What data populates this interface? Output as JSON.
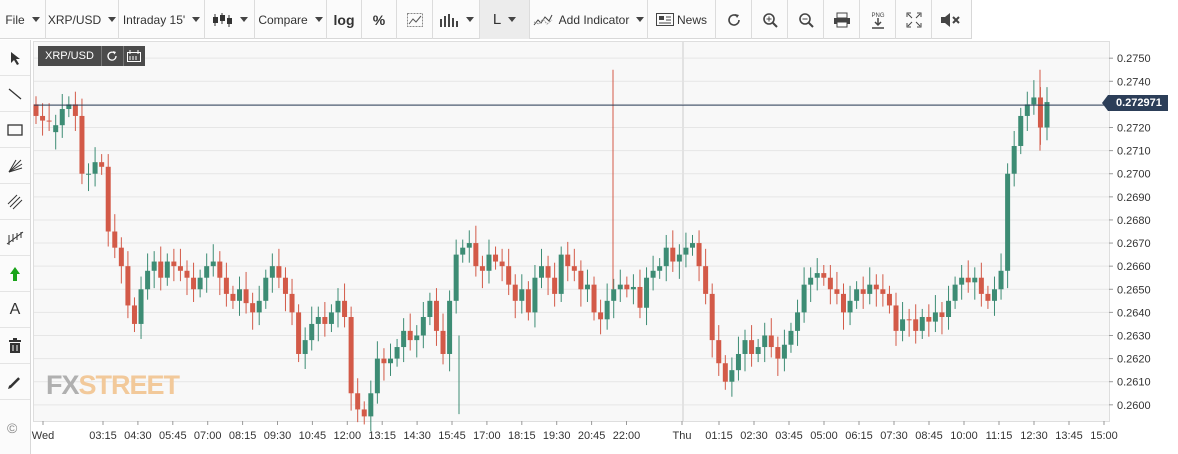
{
  "toolbar": {
    "file": "File",
    "symbol": "XRP/USD",
    "interval": "Intraday 15'",
    "compare": "Compare",
    "log": "log",
    "percent": "%",
    "line_mode": "L",
    "add_indicator": "Add Indicator",
    "news": "News"
  },
  "lefttools": {
    "text_tool": "A"
  },
  "symbol_label": "XRP/USD",
  "logo": {
    "fx": "FX",
    "street": "STREET"
  },
  "copyright": "©",
  "colors": {
    "up": "#3d8c74",
    "down": "#d35a48",
    "price_line": "#2c3e58",
    "grid": "#e6e6e6"
  },
  "chart_data": {
    "type": "candlestick",
    "symbol": "XRP/USD",
    "interval": "15m",
    "current_price": 0.272971,
    "current_price_label": "0.272971",
    "ylim": [
      0.2593,
      0.2757
    ],
    "yticks": [
      "0.2600",
      "0.2610",
      "0.2620",
      "0.2630",
      "0.2640",
      "0.2650",
      "0.2660",
      "0.2670",
      "0.2680",
      "0.2690",
      "0.2700",
      "0.2710",
      "0.2720",
      "0.2730",
      "0.2740",
      "0.2750"
    ],
    "xticks": [
      "Wed",
      "03:15",
      "04:30",
      "05:45",
      "07:00",
      "08:15",
      "09:30",
      "10:45",
      "12:00",
      "13:15",
      "14:30",
      "15:45",
      "17:00",
      "18:15",
      "19:30",
      "20:45",
      "22:00",
      "Thu",
      "01:15",
      "02:30",
      "03:45",
      "05:00",
      "06:15",
      "07:30",
      "08:45",
      "10:00",
      "11:15",
      "12:30",
      "13:45",
      "15:00"
    ],
    "close": [
      0.2725,
      0.2723,
      0.2723,
      0.2721,
      0.2728,
      0.273,
      0.2725,
      0.27,
      0.27,
      0.2705,
      0.2703,
      0.2675,
      0.2668,
      0.266,
      0.2643,
      0.2635,
      0.265,
      0.2658,
      0.2662,
      0.2655,
      0.2662,
      0.266,
      0.2658,
      0.2655,
      0.265,
      0.2655,
      0.266,
      0.2662,
      0.2655,
      0.2648,
      0.2645,
      0.265,
      0.2644,
      0.264,
      0.2645,
      0.2655,
      0.266,
      0.2655,
      0.2648,
      0.264,
      0.2622,
      0.2628,
      0.2635,
      0.2638,
      0.2635,
      0.264,
      0.2645,
      0.2638,
      0.2605,
      0.2598,
      0.2595,
      0.2605,
      0.262,
      0.2618,
      0.262,
      0.2625,
      0.2632,
      0.2628,
      0.263,
      0.2638,
      0.2645,
      0.2632,
      0.2622,
      0.2645,
      0.2665,
      0.2668,
      0.267,
      0.266,
      0.2658,
      0.2665,
      0.2662,
      0.266,
      0.2652,
      0.2645,
      0.265,
      0.264,
      0.2655,
      0.266,
      0.2655,
      0.2648,
      0.2665,
      0.266,
      0.2658,
      0.265,
      0.2652,
      0.264,
      0.2637,
      0.2645,
      0.265,
      0.2652,
      0.265,
      0.2651,
      0.2642,
      0.2655,
      0.2658,
      0.266,
      0.2668,
      0.2662,
      0.2665,
      0.2668,
      0.267,
      0.266,
      0.2648,
      0.2628,
      0.2618,
      0.261,
      0.2615,
      0.2622,
      0.2628,
      0.2622,
      0.2625,
      0.263,
      0.2625,
      0.262,
      0.2626,
      0.2632,
      0.264,
      0.2652,
      0.2655,
      0.2657,
      0.2655,
      0.265,
      0.2648,
      0.264,
      0.2645,
      0.265,
      0.2648,
      0.2652,
      0.265,
      0.2648,
      0.2643,
      0.2632,
      0.2637,
      0.2637,
      0.2632,
      0.2638,
      0.2636,
      0.264,
      0.2638,
      0.2645,
      0.2652,
      0.2655,
      0.2653,
      0.2655,
      0.2648,
      0.2645,
      0.265,
      0.2658,
      0.27,
      0.2712,
      0.2725,
      0.273,
      0.2733,
      0.272,
      0.2731
    ],
    "colors_up": [
      0,
      0,
      0,
      1,
      1,
      1,
      0,
      0,
      1,
      1,
      0,
      0,
      0,
      0,
      0,
      0,
      1,
      1,
      1,
      0,
      1,
      0,
      0,
      0,
      0,
      1,
      1,
      1,
      0,
      0,
      0,
      1,
      0,
      0,
      1,
      1,
      1,
      0,
      0,
      0,
      0,
      1,
      1,
      1,
      0,
      1,
      1,
      0,
      0,
      0,
      0,
      1,
      1,
      0,
      1,
      1,
      1,
      0,
      1,
      1,
      1,
      0,
      0,
      1,
      1,
      1,
      1,
      0,
      0,
      1,
      0,
      0,
      0,
      0,
      1,
      0,
      1,
      1,
      0,
      0,
      1,
      0,
      0,
      0,
      1,
      0,
      0,
      1,
      1,
      1,
      0,
      1,
      0,
      1,
      1,
      1,
      1,
      0,
      1,
      1,
      1,
      0,
      0,
      0,
      0,
      0,
      1,
      1,
      1,
      0,
      1,
      1,
      0,
      0,
      1,
      1,
      1,
      1,
      1,
      1,
      0,
      0,
      0,
      0,
      1,
      1,
      0,
      1,
      0,
      0,
      0,
      0,
      1,
      0,
      0,
      1,
      0,
      1,
      0,
      1,
      1,
      1,
      0,
      1,
      0,
      0,
      1,
      1,
      1,
      1,
      1,
      1,
      1,
      0,
      1
    ]
  }
}
